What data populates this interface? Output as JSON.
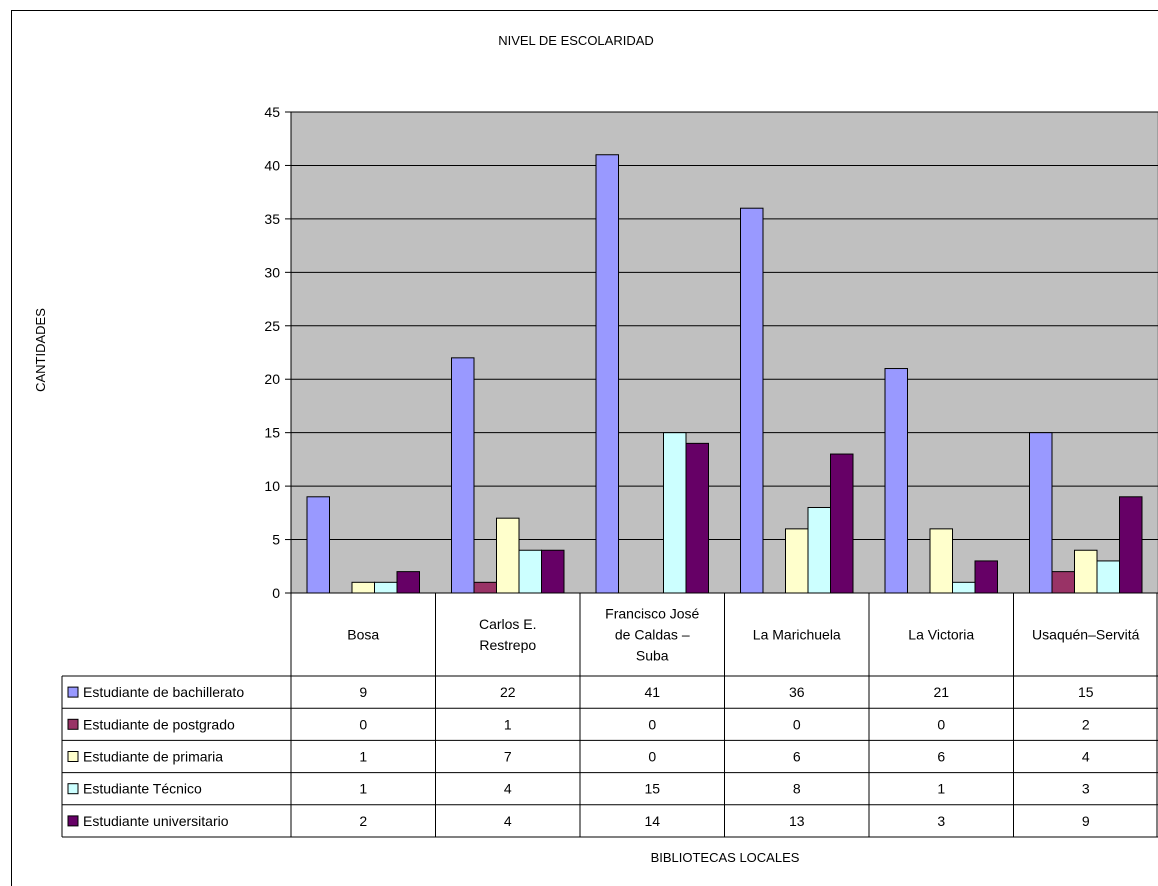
{
  "chart_data": {
    "type": "bar",
    "title": "NIVEL DE ESCOLARIDAD",
    "xlabel": "BIBLIOTECAS LOCALES",
    "ylabel": "CANTIDADES",
    "ylim": [
      0,
      45
    ],
    "yticks": [
      0,
      5,
      10,
      15,
      20,
      25,
      30,
      35,
      40,
      45
    ],
    "grid": true,
    "legend": "data-table",
    "categories": [
      [
        "Bosa"
      ],
      [
        "Carlos E.",
        "Restrepo"
      ],
      [
        "Francisco José",
        "de Caldas –",
        "Suba"
      ],
      [
        "La Marichuela"
      ],
      [
        "La Victoria"
      ],
      [
        "Usaquén–Servitá"
      ]
    ],
    "series": [
      {
        "name": "Estudiante de bachillerato",
        "color": "#9999FF",
        "values": [
          9,
          22,
          41,
          36,
          21,
          15
        ]
      },
      {
        "name": "Estudiante de postgrado",
        "color": "#993366",
        "values": [
          0,
          1,
          0,
          0,
          0,
          2
        ]
      },
      {
        "name": "Estudiante de primaria",
        "color": "#FFFFCC",
        "values": [
          1,
          7,
          0,
          6,
          6,
          4
        ]
      },
      {
        "name": "Estudiante Técnico",
        "color": "#CCFFFF",
        "values": [
          1,
          4,
          15,
          8,
          1,
          3
        ]
      },
      {
        "name": "Estudiante universitario",
        "color": "#660066",
        "values": [
          2,
          4,
          14,
          13,
          3,
          9
        ]
      }
    ],
    "plot_background": "#C0C0C0"
  }
}
